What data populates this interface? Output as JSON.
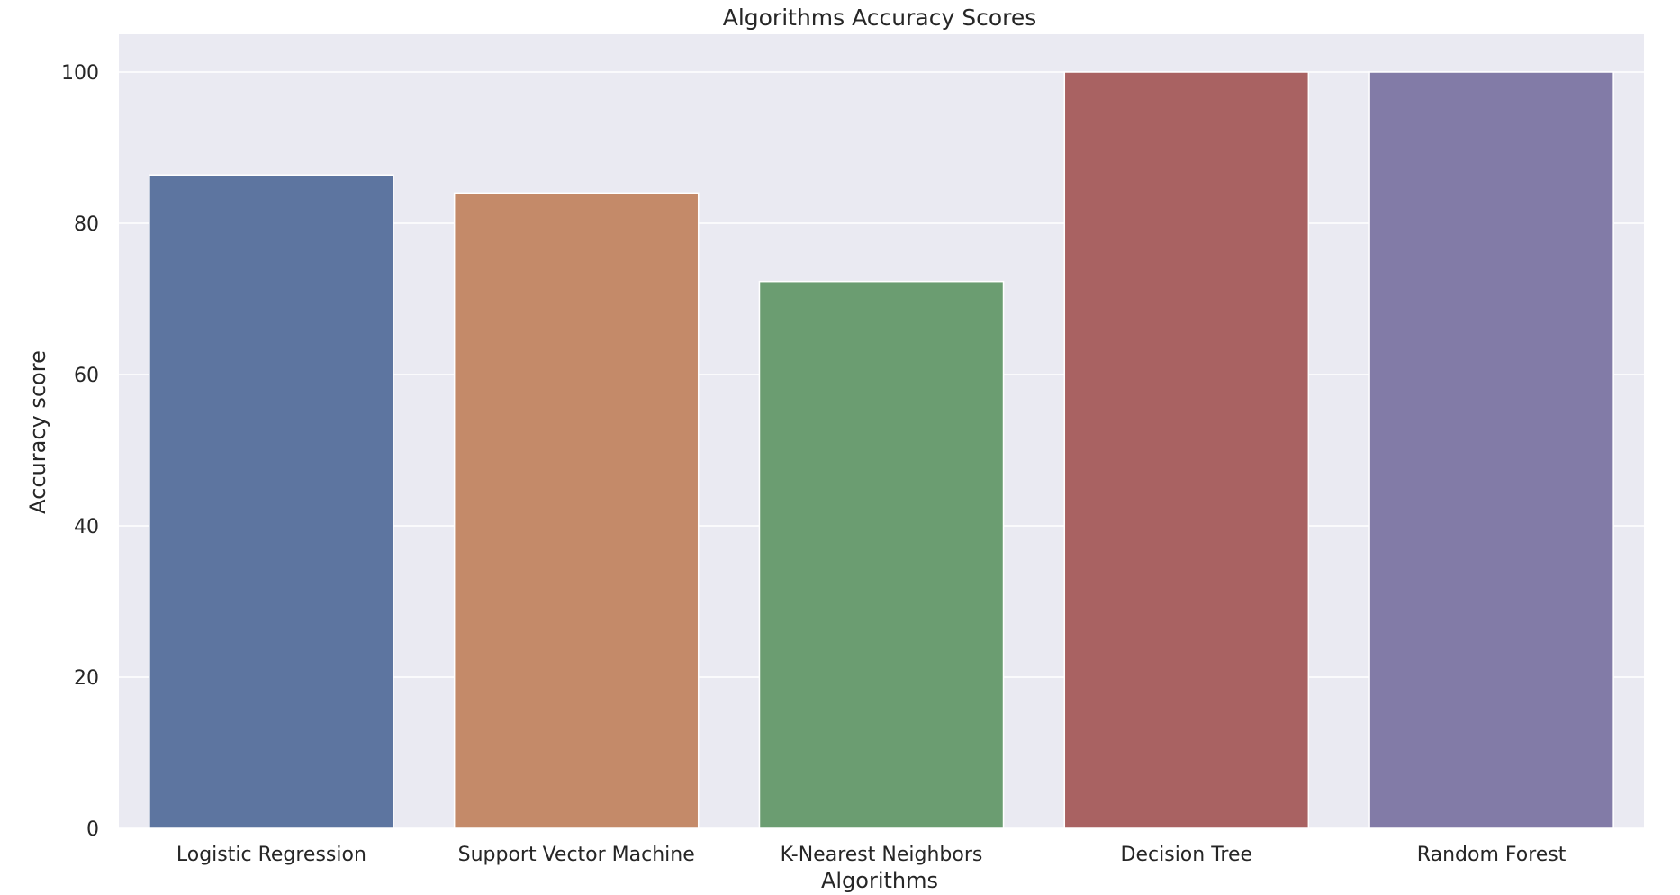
{
  "chart_data": {
    "type": "bar",
    "title": "Algorithms Accuracy Scores",
    "xlabel": "Algorithms",
    "ylabel": "Accuracy score",
    "categories": [
      "Logistic Regression",
      "Support Vector Machine",
      "K-Nearest Neighbors",
      "Decision Tree",
      "Random Forest"
    ],
    "values": [
      86.4,
      84.0,
      72.3,
      100.0,
      100.0
    ],
    "colors": [
      "#5d75a0",
      "#c48a69",
      "#6b9d71",
      "#a96262",
      "#827ba7"
    ],
    "yticks": [
      0,
      20,
      40,
      60,
      80,
      100
    ],
    "ylim": [
      0,
      105
    ],
    "grid": true,
    "legend": "none",
    "background": "#eaeaf2",
    "grid_color": "#ffffff"
  }
}
